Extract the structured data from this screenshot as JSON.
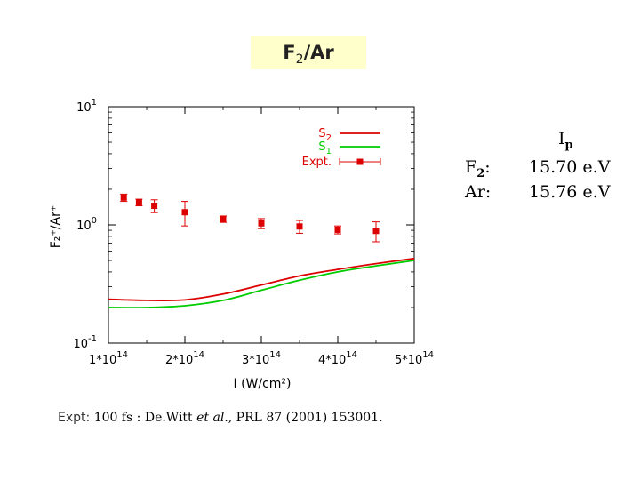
{
  "slide": {
    "title_main": "F",
    "title_sub": "2",
    "title_rest": "/Ar",
    "title_bg_color": "#ffffcc"
  },
  "ip_table": {
    "header_main": "I",
    "header_sub": "p",
    "rows": [
      {
        "species_main": "F",
        "species_sub": "2",
        "species_suffix": ":",
        "value": "15.70 e.V"
      },
      {
        "species_main": "Ar",
        "species_sub": "",
        "species_suffix": ":",
        "value": "15.76 e.V"
      }
    ]
  },
  "reference": {
    "label": "Expt:",
    "text_a": "100 fs : De.Witt ",
    "text_b": "et al.",
    "text_c": ", PRL 87 (2001) 153001."
  },
  "chart_data": {
    "type": "line",
    "yscale": "log",
    "xlabel": "I (W/cm²)",
    "ylabel": "F₂⁺/Ar⁺",
    "xlim": [
      100000000000000.0,
      500000000000000.0
    ],
    "ylim": [
      0.1,
      10
    ],
    "xticks": [
      {
        "value": 100000000000000.0,
        "mant": "1*10",
        "exp": "14"
      },
      {
        "value": 200000000000000.0,
        "mant": "2*10",
        "exp": "14"
      },
      {
        "value": 300000000000000.0,
        "mant": "3*10",
        "exp": "14"
      },
      {
        "value": 400000000000000.0,
        "mant": "4*10",
        "exp": "14"
      },
      {
        "value": 500000000000000.0,
        "mant": "5*10",
        "exp": "14"
      }
    ],
    "yticks": [
      {
        "value": 10,
        "mant": "10",
        "exp": "1"
      },
      {
        "value": 1,
        "mant": "10",
        "exp": "0"
      },
      {
        "value": 0.1,
        "mant": "10",
        "exp": "-1"
      }
    ],
    "legend": [
      {
        "label_main": "S",
        "label_sub": "2",
        "color": "#dd0000",
        "kind": "line"
      },
      {
        "label_main": "S",
        "label_sub": "1",
        "color": "#00cc00",
        "kind": "line"
      },
      {
        "label_main": "Expt.",
        "label_sub": "",
        "color": "#dd0000",
        "kind": "errorbar"
      }
    ],
    "series": [
      {
        "name": "S2",
        "kind": "line",
        "color": "#dd0000",
        "x": [
          100000000000000.0,
          150000000000000.0,
          200000000000000.0,
          250000000000000.0,
          300000000000000.0,
          350000000000000.0,
          400000000000000.0,
          450000000000000.0,
          500000000000000.0
        ],
        "y": [
          0.235,
          0.23,
          0.232,
          0.26,
          0.31,
          0.37,
          0.42,
          0.47,
          0.52
        ]
      },
      {
        "name": "S1",
        "kind": "line",
        "color": "#00cc00",
        "x": [
          100000000000000.0,
          150000000000000.0,
          200000000000000.0,
          250000000000000.0,
          300000000000000.0,
          350000000000000.0,
          400000000000000.0,
          450000000000000.0,
          500000000000000.0
        ],
        "y": [
          0.2,
          0.2,
          0.207,
          0.23,
          0.28,
          0.34,
          0.4,
          0.45,
          0.5
        ]
      },
      {
        "name": "Expt.",
        "kind": "scatter",
        "color": "#dd0000",
        "x": [
          120000000000000.0,
          140000000000000.0,
          160000000000000.0,
          200000000000000.0,
          250000000000000.0,
          300000000000000.0,
          350000000000000.0,
          400000000000000.0,
          450000000000000.0
        ],
        "y": [
          1.7,
          1.55,
          1.45,
          1.28,
          1.12,
          1.03,
          0.97,
          0.91,
          0.89
        ],
        "err": [
          0.12,
          0.1,
          0.18,
          0.3,
          0.07,
          0.1,
          0.12,
          0.07,
          0.17
        ]
      }
    ]
  }
}
